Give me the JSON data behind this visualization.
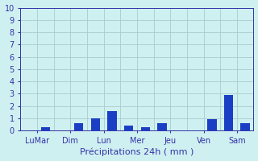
{
  "title": "",
  "xlabel": "Précipitations 24h ( mm )",
  "ylabel": "",
  "background_color": "#cff0f0",
  "bar_color": "#1a3fc4",
  "ylim": [
    0,
    10
  ],
  "yticks": [
    0,
    1,
    2,
    3,
    4,
    5,
    6,
    7,
    8,
    9,
    10
  ],
  "x_group_labels": [
    "LuMar",
    "Dim",
    "Lun",
    "Mer",
    "Jeu",
    "Ven",
    "Sam"
  ],
  "x_group_positions": [
    1,
    3,
    5,
    7,
    9,
    11,
    13
  ],
  "values": [
    0.0,
    0.3,
    0.0,
    0.6,
    1.0,
    1.6,
    0.4,
    0.3,
    0.6,
    0.0,
    0.0,
    0.9,
    2.9,
    0.6
  ],
  "n_bars": 14,
  "grid_color": "#aacccc",
  "axis_color": "#3333aa",
  "tick_color": "#3333aa",
  "label_fontsize": 7,
  "xlabel_fontsize": 8,
  "bar_width": 0.55
}
